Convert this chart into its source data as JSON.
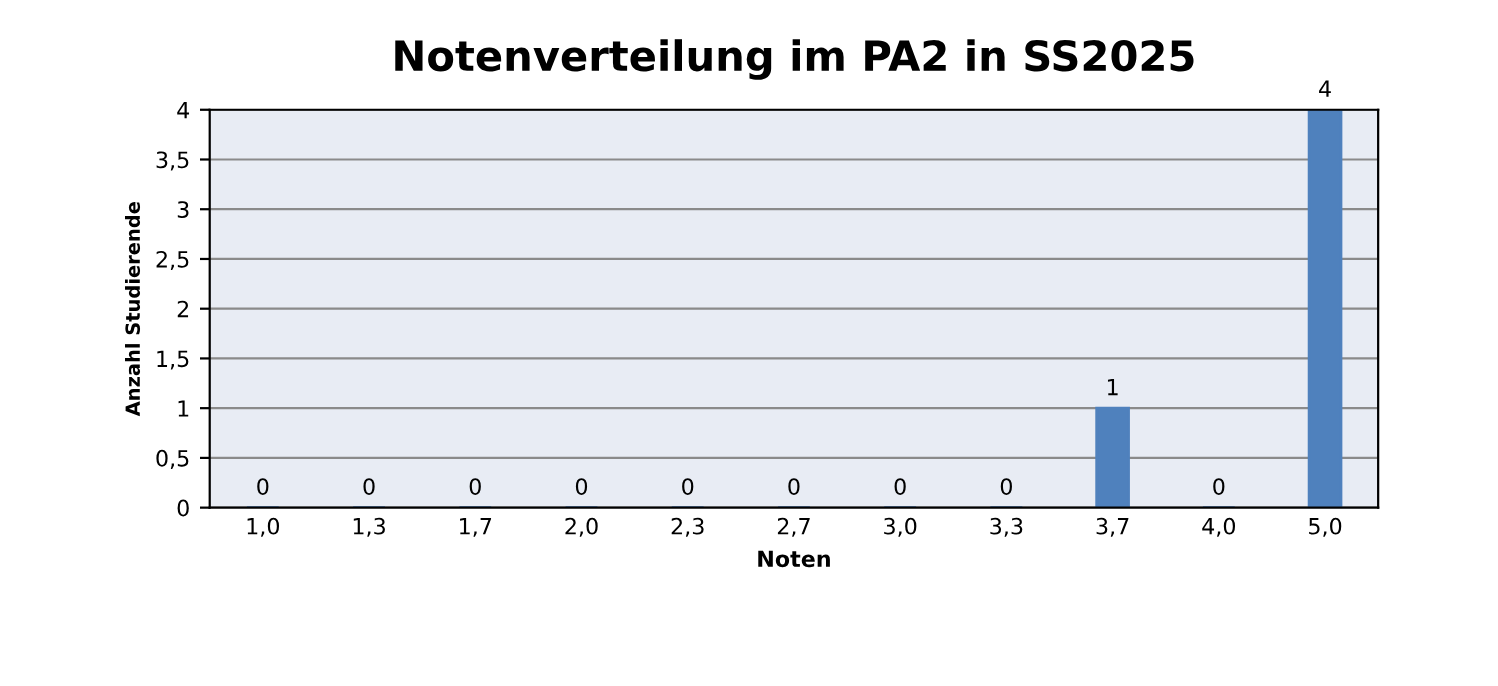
{
  "chart_data": {
    "type": "bar",
    "title": "Notenverteilung im PA2 in SS2025",
    "xlabel": "Noten",
    "ylabel": "Anzahl Studierende",
    "categories": [
      "1,0",
      "1,3",
      "1,7",
      "2,0",
      "2,3",
      "2,7",
      "3,0",
      "3,3",
      "3,7",
      "4,0",
      "5,0"
    ],
    "values": [
      0,
      0,
      0,
      0,
      0,
      0,
      0,
      0,
      1,
      0,
      4
    ],
    "color": "#4f81bd",
    "ylim": [
      0,
      4
    ],
    "yticks": [
      0,
      {
        "value": 0.5,
        "label": "0,5"
      },
      1,
      {
        "value": 1.5,
        "label": "1,5"
      },
      2,
      {
        "value": 2.5,
        "label": "2,5"
      },
      3,
      {
        "value": 3.5,
        "label": "3,5"
      },
      4
    ],
    "grid": "y",
    "data_labels": true
  }
}
